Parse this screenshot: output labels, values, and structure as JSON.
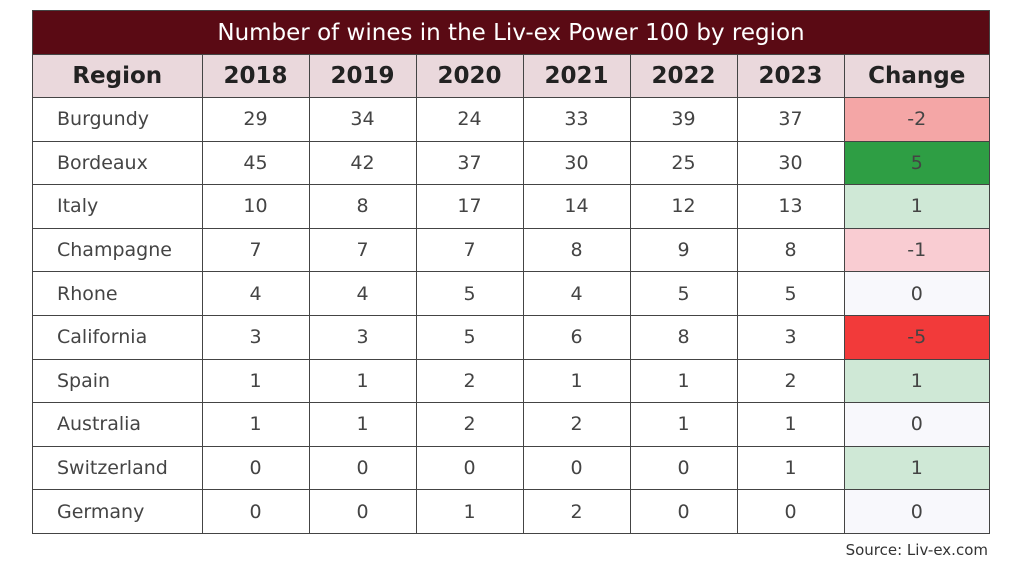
{
  "chart_data": {
    "type": "table",
    "title": "Number of wines in the Liv-ex Power 100 by region",
    "columns": [
      "Region",
      "2018",
      "2019",
      "2020",
      "2021",
      "2022",
      "2023",
      "Change"
    ],
    "rows": [
      {
        "region": "Burgundy",
        "values": [
          "29",
          "34",
          "24",
          "33",
          "39",
          "37"
        ],
        "change": "-2",
        "change_color": "#f4a6a6"
      },
      {
        "region": "Bordeaux",
        "values": [
          "45",
          "42",
          "37",
          "30",
          "25",
          "30"
        ],
        "change": "5",
        "change_color": "#2e9e44"
      },
      {
        "region": "Italy",
        "values": [
          "10",
          "8",
          "17",
          "14",
          "12",
          "13"
        ],
        "change": "1",
        "change_color": "#cfe8d6"
      },
      {
        "region": "Champagne",
        "values": [
          "7",
          "7",
          "7",
          "8",
          "9",
          "8"
        ],
        "change": "-1",
        "change_color": "#f9ccd2"
      },
      {
        "region": "Rhone",
        "values": [
          "4",
          "4",
          "5",
          "4",
          "5",
          "5"
        ],
        "change": "0",
        "change_color": "#f8f8fc"
      },
      {
        "region": "California",
        "values": [
          "3",
          "3",
          "5",
          "6",
          "8",
          "3"
        ],
        "change": "-5",
        "change_color": "#f23a3a"
      },
      {
        "region": "Spain",
        "values": [
          "1",
          "1",
          "2",
          "1",
          "1",
          "2"
        ],
        "change": "1",
        "change_color": "#cfe8d6"
      },
      {
        "region": "Australia",
        "values": [
          "1",
          "1",
          "2",
          "2",
          "1",
          "1"
        ],
        "change": "0",
        "change_color": "#f8f8fc"
      },
      {
        "region": "Switzerland",
        "values": [
          "0",
          "0",
          "0",
          "0",
          "0",
          "1"
        ],
        "change": "1",
        "change_color": "#cfe8d6"
      },
      {
        "region": "Germany",
        "values": [
          "0",
          "0",
          "1",
          "2",
          "0",
          "0"
        ],
        "change": "0",
        "change_color": "#f8f8fc"
      }
    ]
  },
  "source": "Source: Liv-ex.com",
  "colors": {
    "title_background": "#5a0a14",
    "header_background": "#ead8dc"
  }
}
